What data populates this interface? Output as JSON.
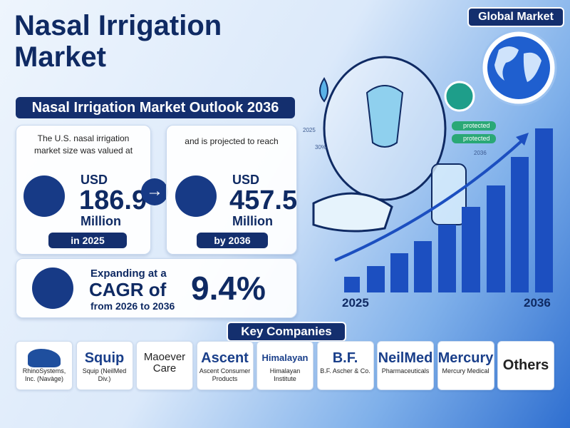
{
  "header": {
    "title": "Nasal Irrigation Market",
    "badge": "Global Market",
    "subtitle": "Nasal Irrigation Market Outlook 2036"
  },
  "illustration": {
    "labels": [
      "2025",
      "30%",
      "2036"
    ],
    "tags": [
      "protected",
      "protected"
    ],
    "chart_start": "2025",
    "chart_end": "2036"
  },
  "stats": [
    {
      "intro": "The U.S. nasal irrigation market size was valued at",
      "currency": "USD",
      "value": "186.9",
      "unit": "Million",
      "period": "in 2025"
    },
    {
      "intro": "and is projected to reach",
      "currency": "USD",
      "value": "457.5",
      "unit": "Million",
      "period": "by 2036"
    }
  ],
  "cagr": {
    "line1": "Expanding at a",
    "line2": "CAGR of",
    "line3": "from 2026 to 2036",
    "value": "9.4%"
  },
  "companies_title": "Key Companies",
  "companies": [
    {
      "logo": "",
      "name": "RhinoSystems, Inc. (Navàge)"
    },
    {
      "logo": "Squip",
      "name": "Squip (NeilMed Div.)"
    },
    {
      "logo": "Maoever Care",
      "name": ""
    },
    {
      "logo": "Ascent",
      "name": "Ascent Consumer Products"
    },
    {
      "logo": "Himalayan",
      "name": "Himalayan Institute"
    },
    {
      "logo": "B.F.",
      "name": "B.F. Ascher & Co."
    },
    {
      "logo": "NeilMed",
      "name": "Pharmaceuticals"
    },
    {
      "logo": "Mercury",
      "name": "Mercury Medical"
    },
    {
      "logo": "Others",
      "name": ""
    }
  ]
}
